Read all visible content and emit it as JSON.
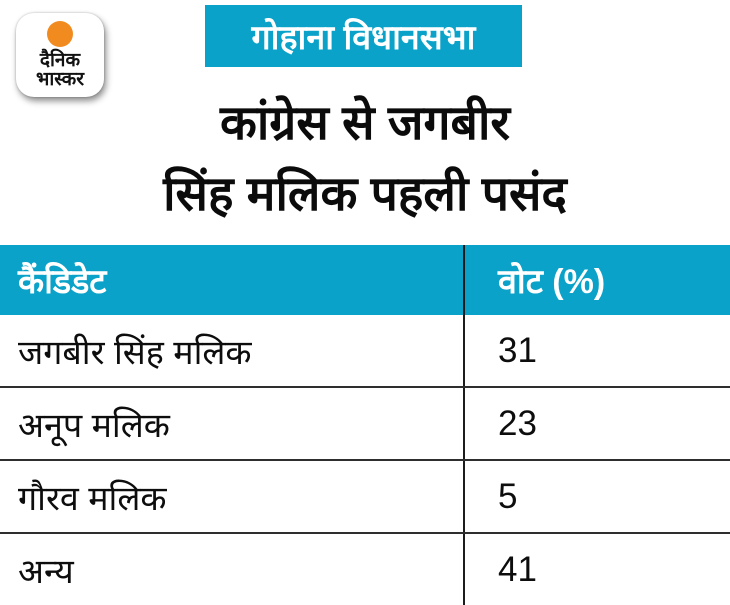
{
  "brand": {
    "name_line1": "दैनिक",
    "name_line2": "भास्कर",
    "logo_orange": "#F28B1F"
  },
  "banner": {
    "label": "गोहाना विधानसभा",
    "bg_color": "#0AA2C8",
    "text_color": "#FFFFFF"
  },
  "headline": {
    "line1": "कांग्रेस से जगबीर",
    "line2": "सिंह मलिक पहली पसंद"
  },
  "table": {
    "header": {
      "candidate": "कैंडिडेट",
      "vote": "वोट (%)"
    },
    "rows": [
      {
        "candidate": "जगबीर सिंह मलिक",
        "vote": "31"
      },
      {
        "candidate": "अनूप मलिक",
        "vote": "23"
      },
      {
        "candidate": "गौरव मलिक",
        "vote": "5"
      },
      {
        "candidate": "अन्य",
        "vote": "41"
      }
    ]
  },
  "colors": {
    "accent_cyan": "#0AA2C8",
    "text_black": "#0d0d0d",
    "divider_dark": "#2e2e2e",
    "logo_orange": "#F28B1F"
  },
  "chart_data": {
    "type": "table",
    "title": "कांग्रेस से जगबीर सिंह मलिक पहली पसंद",
    "subtitle": "गोहाना विधानसभा",
    "columns": [
      "कैंडिडेट",
      "वोट (%)"
    ],
    "rows": [
      [
        "जगबीर सिंह मलिक",
        31
      ],
      [
        "अनूप मलिक",
        23
      ],
      [
        "गौरव मलिक",
        5
      ],
      [
        "अन्य",
        41
      ]
    ]
  }
}
